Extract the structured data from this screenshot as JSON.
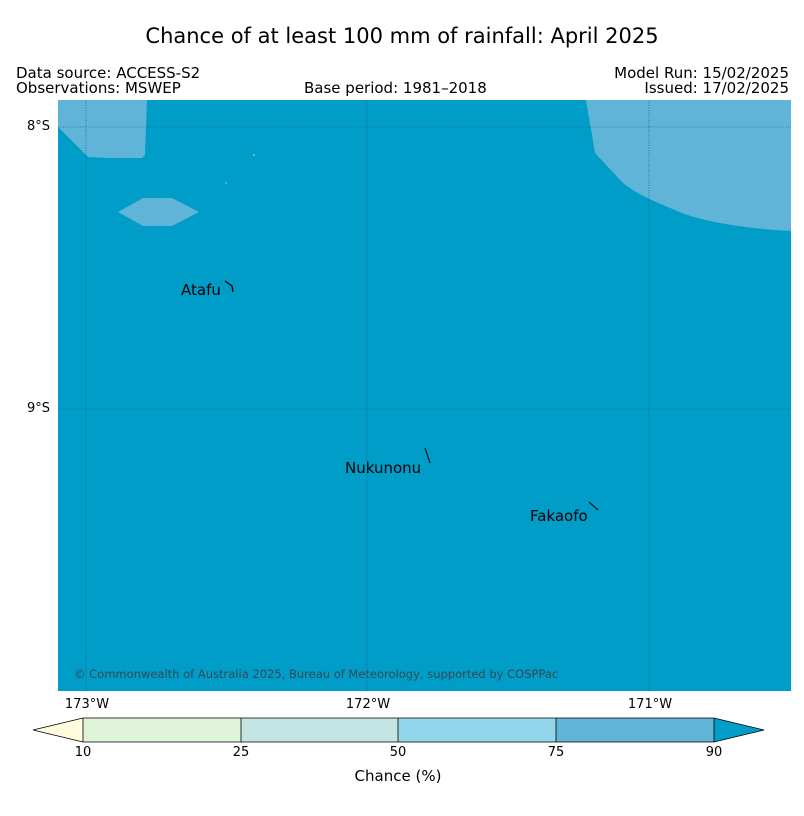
{
  "title": "Chance of at least 100 mm of rainfall: April 2025",
  "header": {
    "data_source": "Data source: ACCESS-S2",
    "observations": "Observations: MSWEP",
    "base_period": "Base period: 1981–2018",
    "model_run": "Model Run: 15/02/2025",
    "issued": "Issued: 17/02/2025"
  },
  "map": {
    "latitude_labels": [
      "8°S",
      "9°S"
    ],
    "longitude_labels": [
      "173°W",
      "172°W",
      "171°W"
    ],
    "places": [
      {
        "name": "Atafu"
      },
      {
        "name": "Nukunonu"
      },
      {
        "name": "Fakaofo"
      }
    ],
    "copyright": "© Commonwealth of Australia 2025, Bureau of Meteorology, supported by COSPPac"
  },
  "colorbar": {
    "title": "Chance (%)",
    "ticks": [
      "10",
      "25",
      "50",
      "75",
      "90"
    ],
    "colors": {
      "below_10": "#fffbdc",
      "10_25": "#dff3d8",
      "25_50": "#c4e4e4",
      "50_75": "#93d5ea",
      "75_90": "#5fb4d7",
      "above_90": "#009dc8"
    }
  }
}
